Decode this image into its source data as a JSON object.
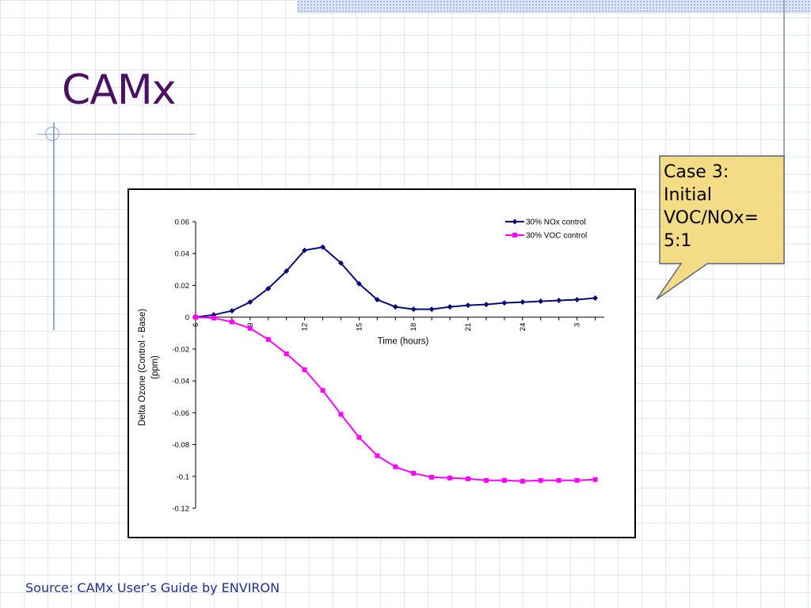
{
  "slide": {
    "title": "CAMx",
    "source": "Source: CAMx User’s Guide by ENVIRON"
  },
  "callout": {
    "lines": [
      "Case 3:",
      "Initial",
      "VOC/NOx=",
      "5:1"
    ],
    "fill": "#f4dc87",
    "border": "#556677"
  },
  "chart_data": {
    "type": "line",
    "xlabel": "Time (hours)",
    "ylabel": "Delta Ozone (Control - Base) (ppm)",
    "ylabel_lines": [
      "Delta Ozone (Control - Base)",
      "(ppm)"
    ],
    "x_tick_labels": [
      "6",
      "9",
      "12",
      "15",
      "18",
      "21",
      "24",
      "3"
    ],
    "x_tick_indices": [
      0,
      3,
      6,
      9,
      12,
      15,
      18,
      21
    ],
    "xlim": [
      0,
      22.5
    ],
    "ylim": [
      -0.12,
      0.06
    ],
    "y_ticks": [
      0.06,
      0.04,
      0.02,
      0,
      -0.02,
      -0.04,
      -0.06,
      -0.08,
      -0.1,
      -0.12
    ],
    "y_tick_labels": [
      "0.06",
      "0.04",
      "0.02",
      "0",
      "-0.02",
      "-0.04",
      "-0.06",
      "-0.08",
      "-0.1",
      "-0.12"
    ],
    "grid": false,
    "legend_position": "top-right",
    "series": [
      {
        "name": "30% NOx control",
        "color": "#0a0a7a",
        "marker": "diamond",
        "values": [
          0,
          0.0015,
          0.004,
          0.0095,
          0.018,
          0.029,
          0.042,
          0.044,
          0.034,
          0.021,
          0.011,
          0.0065,
          0.005,
          0.005,
          0.0065,
          0.0075,
          0.008,
          0.009,
          0.0095,
          0.01,
          0.0105,
          0.011,
          0.012
        ]
      },
      {
        "name": "30% VOC control",
        "color": "#ff00ff",
        "marker": "square",
        "values": [
          0,
          -0.0005,
          -0.003,
          -0.007,
          -0.014,
          -0.023,
          -0.033,
          -0.046,
          -0.061,
          -0.0755,
          -0.087,
          -0.094,
          -0.098,
          -0.1005,
          -0.101,
          -0.1015,
          -0.1025,
          -0.1025,
          -0.103,
          -0.1025,
          -0.1025,
          -0.1025,
          -0.102
        ]
      }
    ]
  }
}
